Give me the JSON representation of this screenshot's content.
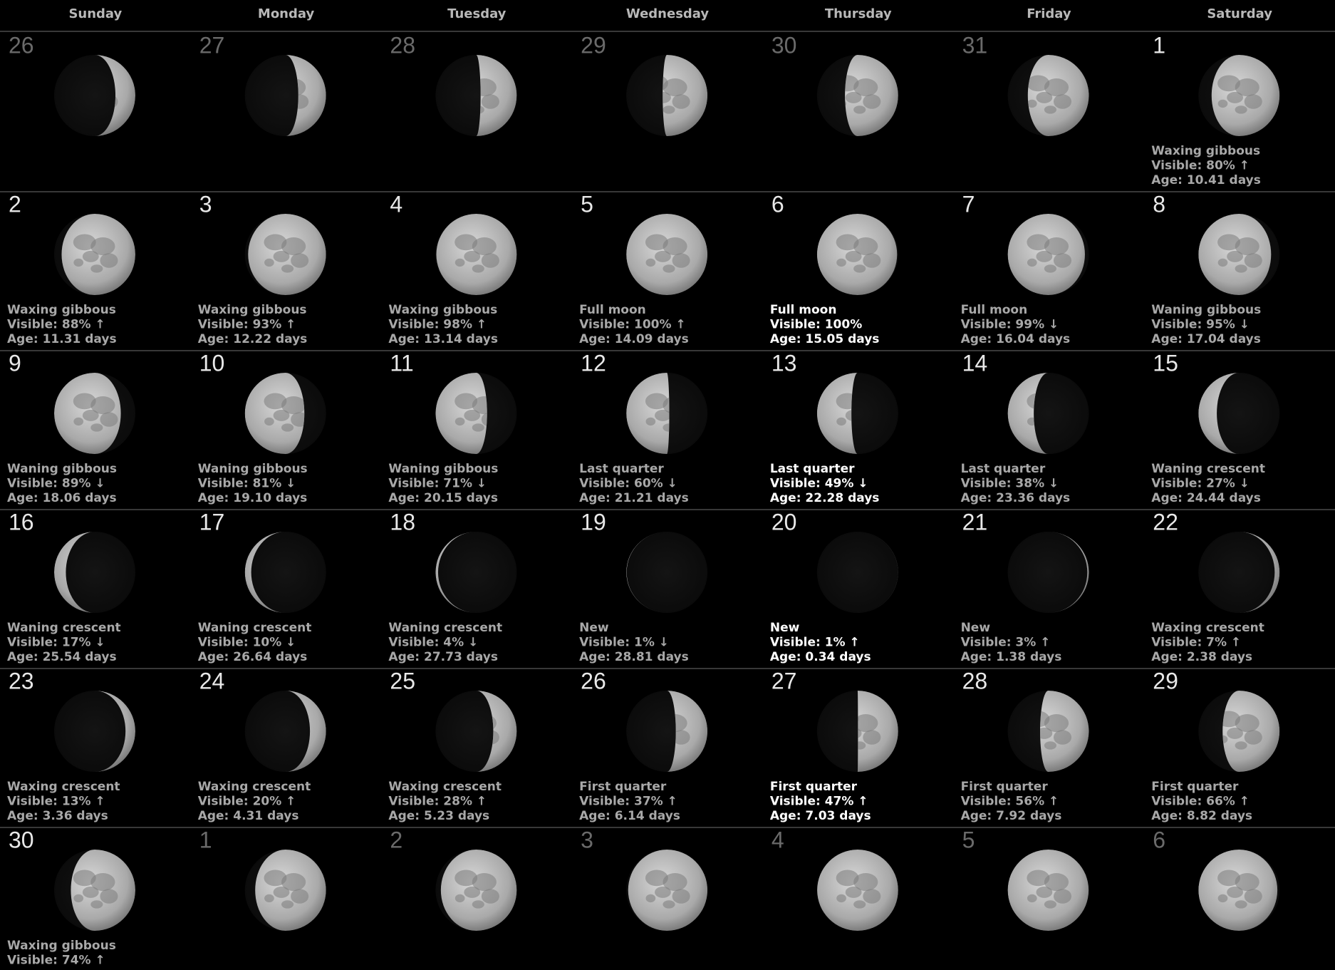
{
  "weekdays": [
    "Sunday",
    "Monday",
    "Tuesday",
    "Wednesday",
    "Thursday",
    "Friday",
    "Saturday"
  ],
  "weeks": [
    [
      {
        "day": 26
      },
      {
        "day": 27
      },
      {
        "day": 28
      },
      {
        "day": 29
      },
      {
        "day": 30
      },
      {
        "day": 31
      },
      {
        "day": 1,
        "phase": "Waxing gibbous",
        "visible": "Visible: 80% ↑",
        "age": "Age: 10.41 days"
      }
    ],
    [
      {
        "day": 2,
        "phase": "Waxing gibbous",
        "visible": "Visible: 88% ↑",
        "age": "Age: 11.31 days"
      },
      {
        "day": 3,
        "phase": "Waxing gibbous",
        "visible": "Visible: 93% ↑",
        "age": "Age: 12.22 days"
      },
      {
        "day": 4,
        "phase": "Waxing gibbous",
        "visible": "Visible: 98% ↑",
        "age": "Age: 13.14 days"
      },
      {
        "day": 5,
        "phase": "Full moon",
        "visible": "Visible: 100% ↑",
        "age": "Age: 14.09 days"
      },
      {
        "day": 6,
        "phase": "Full moon",
        "visible": "Visible: 100%",
        "age": "Age: 15.05 days"
      },
      {
        "day": 7,
        "phase": "Full moon",
        "visible": "Visible: 99% ↓",
        "age": "Age: 16.04 days"
      },
      {
        "day": 8,
        "phase": "Waning gibbous",
        "visible": "Visible: 95% ↓",
        "age": "Age: 17.04 days"
      }
    ],
    [
      {
        "day": 9,
        "phase": "Waning gibbous",
        "visible": "Visible: 89% ↓",
        "age": "Age: 18.06 days"
      },
      {
        "day": 10,
        "phase": "Waning gibbous",
        "visible": "Visible: 81% ↓",
        "age": "Age: 19.10 days"
      },
      {
        "day": 11,
        "phase": "Waning gibbous",
        "visible": "Visible: 71% ↓",
        "age": "Age: 20.15 days"
      },
      {
        "day": 12,
        "phase": "Last quarter",
        "visible": "Visible: 60% ↓",
        "age": "Age: 21.21 days"
      },
      {
        "day": 13,
        "phase": "Last quarter",
        "visible": "Visible: 49% ↓",
        "age": "Age: 22.28 days"
      },
      {
        "day": 14,
        "phase": "Last quarter",
        "visible": "Visible: 38% ↓",
        "age": "Age: 23.36 days"
      },
      {
        "day": 15,
        "phase": "Waning crescent",
        "visible": "Visible: 27% ↓",
        "age": "Age: 24.44 days"
      }
    ],
    [
      {
        "day": 16,
        "phase": "Waning crescent",
        "visible": "Visible: 17% ↓",
        "age": "Age: 25.54 days"
      },
      {
        "day": 17,
        "phase": "Waning crescent",
        "visible": "Visible: 10% ↓",
        "age": "Age: 26.64 days"
      },
      {
        "day": 18,
        "phase": "Waning crescent",
        "visible": "Visible: 4% ↓",
        "age": "Age: 27.73 days"
      },
      {
        "day": 19,
        "phase": "New",
        "visible": "Visible: 1% ↓",
        "age": "Age: 28.81 days"
      },
      {
        "day": 20,
        "phase": "New",
        "visible": "Visible: 1% ↑",
        "age": "Age: 0.34 days"
      },
      {
        "day": 21,
        "phase": "New",
        "visible": "Visible: 3% ↑",
        "age": "Age: 1.38 days"
      },
      {
        "day": 22,
        "phase": "Waxing crescent",
        "visible": "Visible: 7% ↑",
        "age": "Age: 2.38 days"
      }
    ],
    [
      {
        "day": 23,
        "phase": "Waxing crescent",
        "visible": "Visible: 13% ↑",
        "age": "Age: 3.36 days"
      },
      {
        "day": 24,
        "phase": "Waxing crescent",
        "visible": "Visible: 20% ↑",
        "age": "Age: 4.31 days"
      },
      {
        "day": 25,
        "phase": "Waxing crescent",
        "visible": "Visible: 28% ↑",
        "age": "Age: 5.23 days"
      },
      {
        "day": 26,
        "phase": "First quarter",
        "visible": "Visible: 37% ↑",
        "age": "Age: 6.14 days"
      },
      {
        "day": 27,
        "phase": "First quarter",
        "visible": "Visible: 47% ↑",
        "age": "Age: 7.03 days"
      },
      {
        "day": 28,
        "phase": "First quarter",
        "visible": "Visible: 56% ↑",
        "age": "Age: 7.92 days"
      },
      {
        "day": 29,
        "phase": "First quarter",
        "visible": "Visible: 66% ↑",
        "age": "Age: 8.82 days"
      }
    ],
    [
      {
        "day": 30,
        "phase": "Waxing gibbous",
        "visible": "Visible: 74% ↑"
      },
      {
        "day": 1
      },
      {
        "day": 2
      },
      {
        "day": 3
      },
      {
        "day": 4
      },
      {
        "day": 5
      },
      {
        "day": 6
      }
    ]
  ]
}
